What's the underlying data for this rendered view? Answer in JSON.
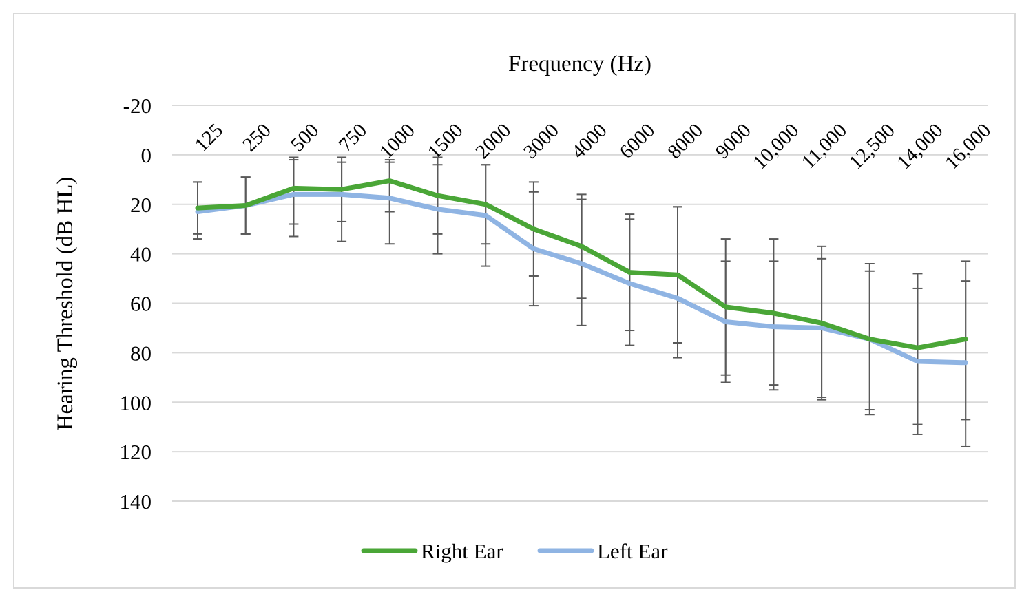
{
  "chart_data": {
    "type": "line",
    "title": "",
    "xlabel": "Frequency (Hz)",
    "ylabel": "Hearing Threshold (dB HL)",
    "categories": [
      "125",
      "250",
      "500",
      "750",
      "1000",
      "1500",
      "2000",
      "3000",
      "4000",
      "6000",
      "8000",
      "9000",
      "10,000",
      "11,000",
      "12,500",
      "14,000",
      "16,000"
    ],
    "ylim": [
      -20,
      140
    ],
    "y_ticks": [
      "-20",
      "0",
      "20",
      "40",
      "60",
      "80",
      "100",
      "120",
      "140"
    ],
    "y_inverted": true,
    "x_axis_position": "top",
    "grid": true,
    "legend_position": "bottom",
    "series": [
      {
        "name": "Right Ear",
        "color": "#4aa637",
        "values": [
          21.5,
          20.5,
          13.5,
          14,
          10.5,
          16.5,
          20,
          30,
          37,
          47.5,
          48.5,
          61.5,
          64,
          68,
          74.5,
          78,
          74.5
        ],
        "error_low": [
          11,
          9,
          2,
          3,
          2,
          4,
          4,
          11,
          18,
          26,
          21,
          43,
          43,
          42,
          47,
          54,
          51
        ],
        "error_high": [
          32,
          32,
          28,
          27,
          23,
          32,
          36,
          49,
          58,
          71,
          76,
          89,
          93,
          98,
          103,
          109,
          107
        ]
      },
      {
        "name": "Left Ear",
        "color": "#8fb4e3",
        "values": [
          23,
          20.5,
          16,
          16,
          17.5,
          22,
          24.5,
          38,
          44,
          52,
          58,
          67.5,
          69.5,
          70,
          74.5,
          83.5,
          84
        ],
        "error_low": [
          11,
          9,
          1,
          1,
          3,
          1,
          4,
          15,
          16,
          24,
          21,
          34,
          34,
          37,
          44,
          48,
          43
        ],
        "error_high": [
          34,
          32,
          33,
          35,
          36,
          40,
          45,
          61,
          69,
          77,
          82,
          92,
          95,
          99,
          105,
          113,
          118
        ]
      }
    ]
  }
}
